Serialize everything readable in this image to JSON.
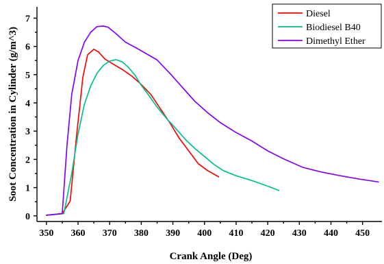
{
  "chart_data": {
    "type": "line",
    "title": "",
    "xlabel": "Crank Angle (Deg)",
    "ylabel": "Soot Concentration in Cylinder (g/m^3)",
    "xlim": [
      347,
      457
    ],
    "ylim": [
      -0.2,
      7.4
    ],
    "xticks": [
      350,
      360,
      370,
      380,
      390,
      400,
      410,
      420,
      430,
      440,
      450
    ],
    "yticks": [
      0,
      1,
      2,
      3,
      4,
      5,
      6,
      7
    ],
    "grid": false,
    "legend_position": "top-right",
    "series": [
      {
        "name": "Diesel",
        "color": "#ff0000",
        "points": [
          [
            350,
            0.02
          ],
          [
            355,
            0.08
          ],
          [
            357.5,
            0.52
          ],
          [
            359.5,
            2.8
          ],
          [
            361.5,
            4.9
          ],
          [
            363,
            5.7
          ],
          [
            365,
            5.9
          ],
          [
            366.5,
            5.8
          ],
          [
            368.5,
            5.55
          ],
          [
            371,
            5.38
          ],
          [
            374,
            5.18
          ],
          [
            377,
            4.95
          ],
          [
            380,
            4.65
          ],
          [
            383,
            4.3
          ],
          [
            386,
            3.8
          ],
          [
            389,
            3.3
          ],
          [
            392,
            2.75
          ],
          [
            395,
            2.3
          ],
          [
            398,
            1.85
          ],
          [
            401,
            1.6
          ],
          [
            404.5,
            1.38
          ]
        ]
      },
      {
        "name": "Biodiesel B40",
        "color": "#00c08b",
        "points": [
          [
            350,
            0.02
          ],
          [
            355.5,
            0.08
          ],
          [
            358,
            1.5
          ],
          [
            360,
            2.9
          ],
          [
            362,
            3.95
          ],
          [
            364,
            4.6
          ],
          [
            366,
            5.05
          ],
          [
            368,
            5.33
          ],
          [
            370,
            5.48
          ],
          [
            372,
            5.53
          ],
          [
            374,
            5.45
          ],
          [
            376,
            5.25
          ],
          [
            378,
            4.98
          ],
          [
            380,
            4.62
          ],
          [
            382.5,
            4.25
          ],
          [
            385,
            3.85
          ],
          [
            388,
            3.45
          ],
          [
            391,
            3.08
          ],
          [
            394,
            2.7
          ],
          [
            397,
            2.38
          ],
          [
            400,
            2.1
          ],
          [
            403,
            1.82
          ],
          [
            406,
            1.6
          ],
          [
            410,
            1.42
          ],
          [
            415,
            1.25
          ],
          [
            420,
            1.05
          ],
          [
            423.5,
            0.9
          ]
        ]
      },
      {
        "name": "Dimethyl Ether",
        "color": "#8000ff",
        "points": [
          [
            350,
            0.02
          ],
          [
            355,
            0.08
          ],
          [
            356.5,
            2.5
          ],
          [
            358,
            4.3
          ],
          [
            360,
            5.5
          ],
          [
            362,
            6.15
          ],
          [
            364,
            6.5
          ],
          [
            366,
            6.7
          ],
          [
            368,
            6.72
          ],
          [
            369.5,
            6.68
          ],
          [
            372,
            6.45
          ],
          [
            375,
            6.15
          ],
          [
            378,
            5.97
          ],
          [
            381,
            5.78
          ],
          [
            385,
            5.52
          ],
          [
            389,
            5.05
          ],
          [
            393,
            4.55
          ],
          [
            397,
            4.05
          ],
          [
            401,
            3.65
          ],
          [
            405,
            3.3
          ],
          [
            410,
            2.95
          ],
          [
            415,
            2.65
          ],
          [
            420,
            2.3
          ],
          [
            425,
            2.02
          ],
          [
            431,
            1.72
          ],
          [
            437,
            1.55
          ],
          [
            443,
            1.42
          ],
          [
            449,
            1.3
          ],
          [
            455,
            1.2
          ]
        ]
      }
    ]
  }
}
